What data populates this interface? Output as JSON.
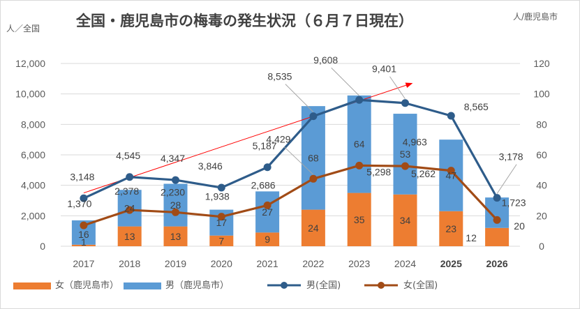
{
  "chart_data": {
    "type": "bar",
    "title": "全国・鹿児島市の梅毒の発生状況（６月７日現在）",
    "left_axis_unit": "人／全国",
    "right_axis_unit": "人/鹿児島市",
    "categories": [
      "2017",
      "2018",
      "2019",
      "2020",
      "2021",
      "2022",
      "2023",
      "2024",
      "2025",
      "2026"
    ],
    "bold_categories": [
      "2025",
      "2026"
    ],
    "left_ylim": [
      0,
      12000
    ],
    "left_yticks": [
      "0",
      "2,000",
      "4,000",
      "6,000",
      "8,000",
      "10,000",
      "12,000"
    ],
    "right_ylim": [
      0,
      120
    ],
    "right_yticks": [
      "0",
      "20",
      "40",
      "60",
      "80",
      "100",
      "120"
    ],
    "grid": true,
    "legend_position": "bottom",
    "series": [
      {
        "name": "女（鹿児島市）",
        "kind": "stacked-bar",
        "axis": "right",
        "color": "#ed7d31",
        "values": [
          1,
          13,
          13,
          7,
          9,
          24,
          35,
          34,
          23,
          12
        ],
        "labels": [
          "1",
          "13",
          "13",
          "7",
          "9",
          "24",
          "35",
          "34",
          "23",
          "12"
        ]
      },
      {
        "name": "男（鹿児島市）",
        "kind": "stacked-bar",
        "axis": "right",
        "color": "#5b9bd5",
        "values": [
          16,
          24,
          28,
          17,
          27,
          68,
          64,
          53,
          47,
          20
        ],
        "labels": [
          "16",
          "24",
          "28",
          "17",
          "27",
          "68",
          "64",
          "53",
          "47",
          "20"
        ]
      },
      {
        "name": "男(全国)",
        "kind": "line",
        "axis": "left",
        "color": "#2e5c8a",
        "values": [
          3148,
          4545,
          4347,
          3846,
          5187,
          8535,
          9608,
          9401,
          8565,
          3178
        ],
        "labels": [
          "3,148",
          "4,545",
          "4,347",
          "3,846",
          "5,187",
          "8,535",
          "9,608",
          "9,401",
          "8,565",
          "3,178"
        ]
      },
      {
        "name": "女(全国)",
        "kind": "line",
        "axis": "left",
        "color": "#a14b16",
        "values": [
          1370,
          2378,
          2230,
          1938,
          2686,
          4429,
          5298,
          5262,
          4963,
          1723
        ],
        "labels": [
          "1,370",
          "2,378",
          "2,230",
          "1,938",
          "2,686",
          "4,429",
          "5,298",
          "5,262",
          "4,963",
          "1,723"
        ]
      }
    ],
    "trend_arrow": {
      "color": "#ff0000",
      "from": {
        "x": "2017",
        "y": 3500
      },
      "to": {
        "x": "2024",
        "y": 10700
      }
    }
  }
}
